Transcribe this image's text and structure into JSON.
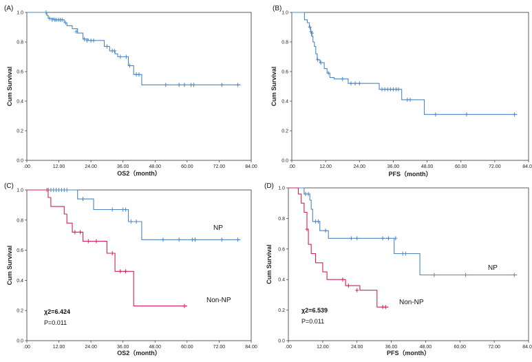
{
  "chart_data": [
    {
      "type": "line",
      "panel_label": "(A)",
      "xlabel": "OS2（month）",
      "ylabel": "Cum Survival",
      "xlim": [
        0,
        84
      ],
      "ylim": [
        0,
        1.0
      ],
      "x_ticks": [
        ".00",
        "12.00",
        "24.00",
        "36.00",
        "48.00",
        "60.00",
        "72.00",
        "84.00"
      ],
      "y_ticks": [
        "0.0",
        "0.2",
        "0.4",
        "0.6",
        "0.8",
        "1.0"
      ],
      "grid": false,
      "series": [
        {
          "color": "#4a86c4",
          "steps": [
            [
              0,
              1.0
            ],
            [
              7.5,
              0.98
            ],
            [
              8,
              0.96
            ],
            [
              10,
              0.95
            ],
            [
              14,
              0.93
            ],
            [
              15,
              0.91
            ],
            [
              17,
              0.89
            ],
            [
              19,
              0.86
            ],
            [
              21,
              0.82
            ],
            [
              23,
              0.81
            ],
            [
              29,
              0.77
            ],
            [
              31,
              0.74
            ],
            [
              33,
              0.72
            ],
            [
              34,
              0.7
            ],
            [
              38,
              0.64
            ],
            [
              40,
              0.58
            ],
            [
              43,
              0.51
            ],
            [
              80,
              0.51
            ]
          ],
          "censored": [
            [
              7.2,
              1.0
            ],
            [
              8.5,
              0.96
            ],
            [
              9.5,
              0.95
            ],
            [
              10.5,
              0.95
            ],
            [
              11,
              0.95
            ],
            [
              11.8,
              0.95
            ],
            [
              12.5,
              0.95
            ],
            [
              13.2,
              0.95
            ],
            [
              14.5,
              0.93
            ],
            [
              18.5,
              0.87
            ],
            [
              21.5,
              0.82
            ],
            [
              22.5,
              0.81
            ],
            [
              24,
              0.81
            ],
            [
              25,
              0.81
            ],
            [
              30,
              0.77
            ],
            [
              32,
              0.74
            ],
            [
              32.8,
              0.74
            ],
            [
              35,
              0.7
            ],
            [
              37.2,
              0.7
            ],
            [
              38.5,
              0.64
            ],
            [
              41,
              0.58
            ],
            [
              42,
              0.58
            ],
            [
              52,
              0.51
            ],
            [
              57,
              0.51
            ],
            [
              59,
              0.51
            ],
            [
              61.5,
              0.51
            ],
            [
              62.5,
              0.51
            ],
            [
              73,
              0.51
            ],
            [
              79,
              0.51
            ]
          ]
        }
      ]
    },
    {
      "type": "line",
      "panel_label": "(B)",
      "xlabel": "PFS（month）",
      "ylabel": "Cum Survival",
      "xlim": [
        0,
        84
      ],
      "ylim": [
        0,
        1.0
      ],
      "x_ticks": [
        ".00",
        "12.00",
        "24.00",
        "36.00",
        "48.00",
        "60.00",
        "72.00",
        "84.00"
      ],
      "y_ticks": [
        "0.0",
        "0.2",
        "0.4",
        "0.6",
        "0.8",
        "1.0"
      ],
      "grid": false,
      "series": [
        {
          "color": "#4a86c4",
          "steps": [
            [
              0,
              1.0
            ],
            [
              4.5,
              0.95
            ],
            [
              5.5,
              0.93
            ],
            [
              6.2,
              0.9
            ],
            [
              6.7,
              0.87
            ],
            [
              7,
              0.84
            ],
            [
              7.5,
              0.8
            ],
            [
              8,
              0.77
            ],
            [
              8.5,
              0.72
            ],
            [
              9,
              0.68
            ],
            [
              10,
              0.66
            ],
            [
              11.5,
              0.62
            ],
            [
              12.5,
              0.59
            ],
            [
              13.5,
              0.56
            ],
            [
              15,
              0.55
            ],
            [
              20,
              0.52
            ],
            [
              31,
              0.48
            ],
            [
              39,
              0.41
            ],
            [
              47,
              0.31
            ],
            [
              80,
              0.31
            ]
          ],
          "censored": [
            [
              6.4,
              0.9
            ],
            [
              6.8,
              0.87
            ],
            [
              7.2,
              0.86
            ],
            [
              9.2,
              0.68
            ],
            [
              10.3,
              0.66
            ],
            [
              13,
              0.59
            ],
            [
              18,
              0.55
            ],
            [
              21,
              0.52
            ],
            [
              22.5,
              0.52
            ],
            [
              24,
              0.52
            ],
            [
              32,
              0.48
            ],
            [
              33,
              0.48
            ],
            [
              34,
              0.48
            ],
            [
              35,
              0.48
            ],
            [
              36,
              0.48
            ],
            [
              37,
              0.48
            ],
            [
              37.8,
              0.48
            ],
            [
              41,
              0.41
            ],
            [
              42,
              0.41
            ],
            [
              51,
              0.31
            ],
            [
              62,
              0.31
            ],
            [
              79,
              0.31
            ]
          ]
        }
      ]
    },
    {
      "type": "line",
      "panel_label": "(C)",
      "xlabel": "OS2（month）",
      "ylabel": "Cum Survival",
      "xlim": [
        0,
        84
      ],
      "ylim": [
        0,
        1.0
      ],
      "x_ticks": [
        ".00",
        "12.00",
        "24.00",
        "36.00",
        "48.00",
        "60.00",
        "72.00",
        "84.00"
      ],
      "y_ticks": [
        "0.0",
        "0.2",
        "0.4",
        "0.6",
        "0.8",
        "1.0"
      ],
      "grid": false,
      "annotations": [
        "χ2=6.424",
        "P=0.011"
      ],
      "series": [
        {
          "name": "NP",
          "color": "#4a86c4",
          "steps": [
            [
              0,
              1.0
            ],
            [
              19,
              0.94
            ],
            [
              25,
              0.87
            ],
            [
              38,
              0.79
            ],
            [
              43,
              0.67
            ],
            [
              80,
              0.67
            ]
          ],
          "censored": [
            [
              7.5,
              1.0
            ],
            [
              9,
              1.0
            ],
            [
              10,
              1.0
            ],
            [
              11,
              1.0
            ],
            [
              12,
              1.0
            ],
            [
              13,
              1.0
            ],
            [
              14,
              1.0
            ],
            [
              15,
              1.0
            ],
            [
              21,
              0.94
            ],
            [
              32,
              0.87
            ],
            [
              36,
              0.87
            ],
            [
              37,
              0.87
            ],
            [
              39,
              0.79
            ],
            [
              41,
              0.79
            ],
            [
              51,
              0.67
            ],
            [
              57,
              0.67
            ],
            [
              62,
              0.67
            ],
            [
              63,
              0.67
            ],
            [
              73,
              0.67
            ],
            [
              79,
              0.67
            ]
          ]
        },
        {
          "name": "Non-NP",
          "color": "#d4204a",
          "steps": [
            [
              0,
              1.0
            ],
            [
              8,
              0.95
            ],
            [
              9,
              0.89
            ],
            [
              14,
              0.84
            ],
            [
              15,
              0.78
            ],
            [
              17,
              0.72
            ],
            [
              21,
              0.66
            ],
            [
              30,
              0.58
            ],
            [
              33,
              0.46
            ],
            [
              40,
              0.23
            ],
            [
              60,
              0.23
            ]
          ],
          "censored": [
            [
              8,
              1.0
            ],
            [
              18,
              0.72
            ],
            [
              20,
              0.72
            ],
            [
              23,
              0.66
            ],
            [
              26,
              0.66
            ],
            [
              32,
              0.58
            ],
            [
              35,
              0.46
            ],
            [
              37,
              0.46
            ],
            [
              59,
              0.23
            ]
          ]
        }
      ]
    },
    {
      "type": "line",
      "panel_label": "(D)",
      "xlabel": "PFS（month）",
      "ylabel": "Cum Survival",
      "xlim": [
        0,
        84
      ],
      "ylim": [
        0,
        1.0
      ],
      "x_ticks": [
        ".00",
        "12.00",
        "24.00",
        "36.00",
        "48.00",
        "60.00",
        "72.00",
        "84.00"
      ],
      "y_ticks": [
        "0.0",
        "0.2",
        "0.4",
        "0.6",
        "0.8",
        "1.0"
      ],
      "grid": false,
      "annotations": [
        "χ2=6.539",
        "P=0.011"
      ],
      "series": [
        {
          "name": "NP",
          "color": "#4a86c4",
          "steps": [
            [
              0,
              1.0
            ],
            [
              5.5,
              0.96
            ],
            [
              7.5,
              0.92
            ],
            [
              8,
              0.86
            ],
            [
              8.5,
              0.78
            ],
            [
              11,
              0.72
            ],
            [
              14,
              0.67
            ],
            [
              37,
              0.57
            ],
            [
              46,
              0.43
            ],
            [
              80,
              0.43
            ]
          ],
          "censored": [
            [
              6,
              0.96
            ],
            [
              7,
              0.96
            ],
            [
              9.5,
              0.78
            ],
            [
              10.5,
              0.78
            ],
            [
              13,
              0.72
            ],
            [
              22,
              0.67
            ],
            [
              24,
              0.67
            ],
            [
              33,
              0.67
            ],
            [
              35,
              0.67
            ],
            [
              37.5,
              0.67
            ],
            [
              40,
              0.57
            ],
            [
              41,
              0.57
            ],
            [
              51,
              0.43
            ],
            [
              62,
              0.43
            ],
            [
              79,
              0.43
            ]
          ]
        },
        {
          "name": "Non-NP",
          "color": "#d4204a",
          "steps": [
            [
              0,
              1.0
            ],
            [
              3.5,
              0.96
            ],
            [
              4.5,
              0.9
            ],
            [
              5.5,
              0.84
            ],
            [
              6.5,
              0.73
            ],
            [
              7,
              0.63
            ],
            [
              8,
              0.57
            ],
            [
              9.5,
              0.51
            ],
            [
              12,
              0.45
            ],
            [
              13.5,
              0.4
            ],
            [
              20,
              0.36
            ],
            [
              25,
              0.33
            ],
            [
              31,
              0.22
            ],
            [
              35,
              0.22
            ]
          ],
          "censored": [
            [
              6.5,
              0.73
            ],
            [
              19,
              0.4
            ],
            [
              21,
              0.36
            ],
            [
              24,
              0.33
            ],
            [
              33,
              0.22
            ],
            [
              34,
              0.22
            ]
          ]
        }
      ]
    }
  ]
}
